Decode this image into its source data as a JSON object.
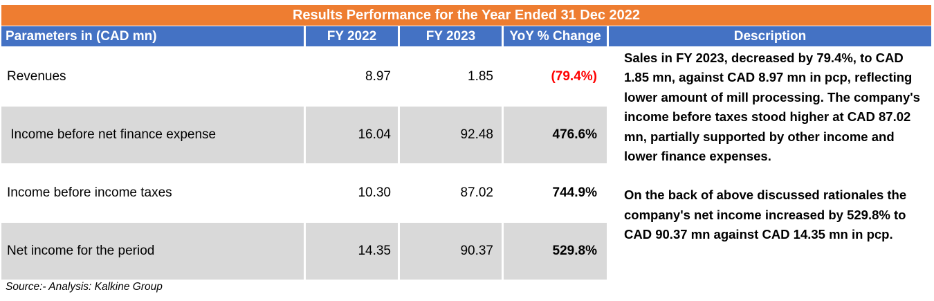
{
  "title": "Results Performance for the Year Ended 31 Dec 2022",
  "headers": {
    "parameters": "Parameters in (CAD mn)",
    "fy2022": "FY 2022",
    "fy2023": "FY 2023",
    "yoy": "YoY % Change",
    "description": "Description"
  },
  "rows": [
    {
      "label": "Revenues",
      "fy2022": "8.97",
      "fy2023": "1.85",
      "yoy": "(79.4%)"
    },
    {
      "label": " Income before net finance expense",
      "fy2022": "16.04",
      "fy2023": "92.48",
      "yoy": "476.6%"
    },
    {
      "label": "Income before income taxes",
      "fy2022": "10.30",
      "fy2023": "87.02",
      "yoy": "744.9%"
    },
    {
      "label": "Net income for the period",
      "fy2022": "14.35",
      "fy2023": "90.37",
      "yoy": "529.8%"
    }
  ],
  "description": {
    "paragraph1": "Sales in FY 2023, decreased by 79.4%, to CAD 1.85 mn, against CAD 8.97 mn in pcp, reflecting lower amount of mill processing. The company's income before taxes stood higher at CAD 87.02 mn, partially supported by other income and lower finance expenses.",
    "paragraph2": "On the back of above discussed rationales the company's net income increased by 529.8% to CAD 90.37 mn against CAD 14.35 mn in pcp."
  },
  "source": "Source:- Analysis: Kalkine Group",
  "colors": {
    "title_bg": "#ee7d31",
    "header_bg": "#4472c4",
    "shade": "#d9d9d9",
    "negative": "#ff0000"
  }
}
